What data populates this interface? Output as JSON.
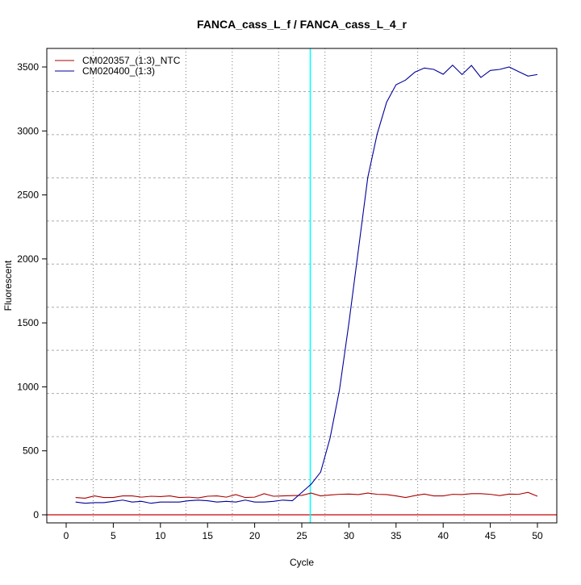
{
  "chart_data": {
    "type": "line",
    "title": "FANCA_cass_L_f / FANCA_cass_L_4_r",
    "xlabel": "Cycle",
    "ylabel": "Fluorescent",
    "xlim": [
      -2,
      52
    ],
    "ylim": [
      -60,
      3650
    ],
    "xticks": [
      0,
      5,
      10,
      15,
      20,
      25,
      30,
      35,
      40,
      45,
      50
    ],
    "yticks": [
      0,
      500,
      1000,
      1500,
      2000,
      2500,
      3000,
      3500
    ],
    "grid": true,
    "legend_position": "top-left",
    "threshold": {
      "value": 0,
      "color": "#cc0000"
    },
    "threshold_cycle": {
      "value": 25.9,
      "color": "#00ffff"
    },
    "x": [
      1,
      2,
      3,
      4,
      5,
      6,
      7,
      8,
      9,
      10,
      11,
      12,
      13,
      14,
      15,
      16,
      17,
      18,
      19,
      20,
      21,
      22,
      23,
      24,
      25,
      26,
      27,
      28,
      29,
      30,
      31,
      32,
      33,
      34,
      35,
      36,
      37,
      38,
      39,
      40,
      41,
      42,
      43,
      44,
      45,
      46,
      47,
      48,
      49,
      50
    ],
    "series": [
      {
        "name": "CM020357_(1:3)_NTC",
        "color": "#aa0000",
        "values": [
          135,
          130,
          148,
          135,
          135,
          148,
          148,
          138,
          145,
          142,
          148,
          135,
          138,
          132,
          145,
          148,
          138,
          158,
          135,
          138,
          165,
          145,
          148,
          150,
          152,
          170,
          148,
          155,
          160,
          162,
          158,
          170,
          160,
          158,
          148,
          135,
          150,
          162,
          148,
          148,
          160,
          158,
          165,
          165,
          160,
          150,
          162,
          160,
          175,
          145
        ]
      },
      {
        "name": "CM020400_(1:3)",
        "color": "#000099",
        "values": [
          100,
          90,
          95,
          95,
          105,
          115,
          100,
          105,
          90,
          100,
          100,
          100,
          110,
          115,
          110,
          100,
          105,
          100,
          115,
          100,
          100,
          105,
          115,
          110,
          175,
          240,
          334,
          600,
          977,
          1500,
          2068,
          2636,
          2977,
          3225,
          3361,
          3397,
          3460,
          3492,
          3481,
          3443,
          3514,
          3441,
          3512,
          3418,
          3473,
          3481,
          3500,
          3464,
          3429,
          3441
        ]
      }
    ]
  }
}
